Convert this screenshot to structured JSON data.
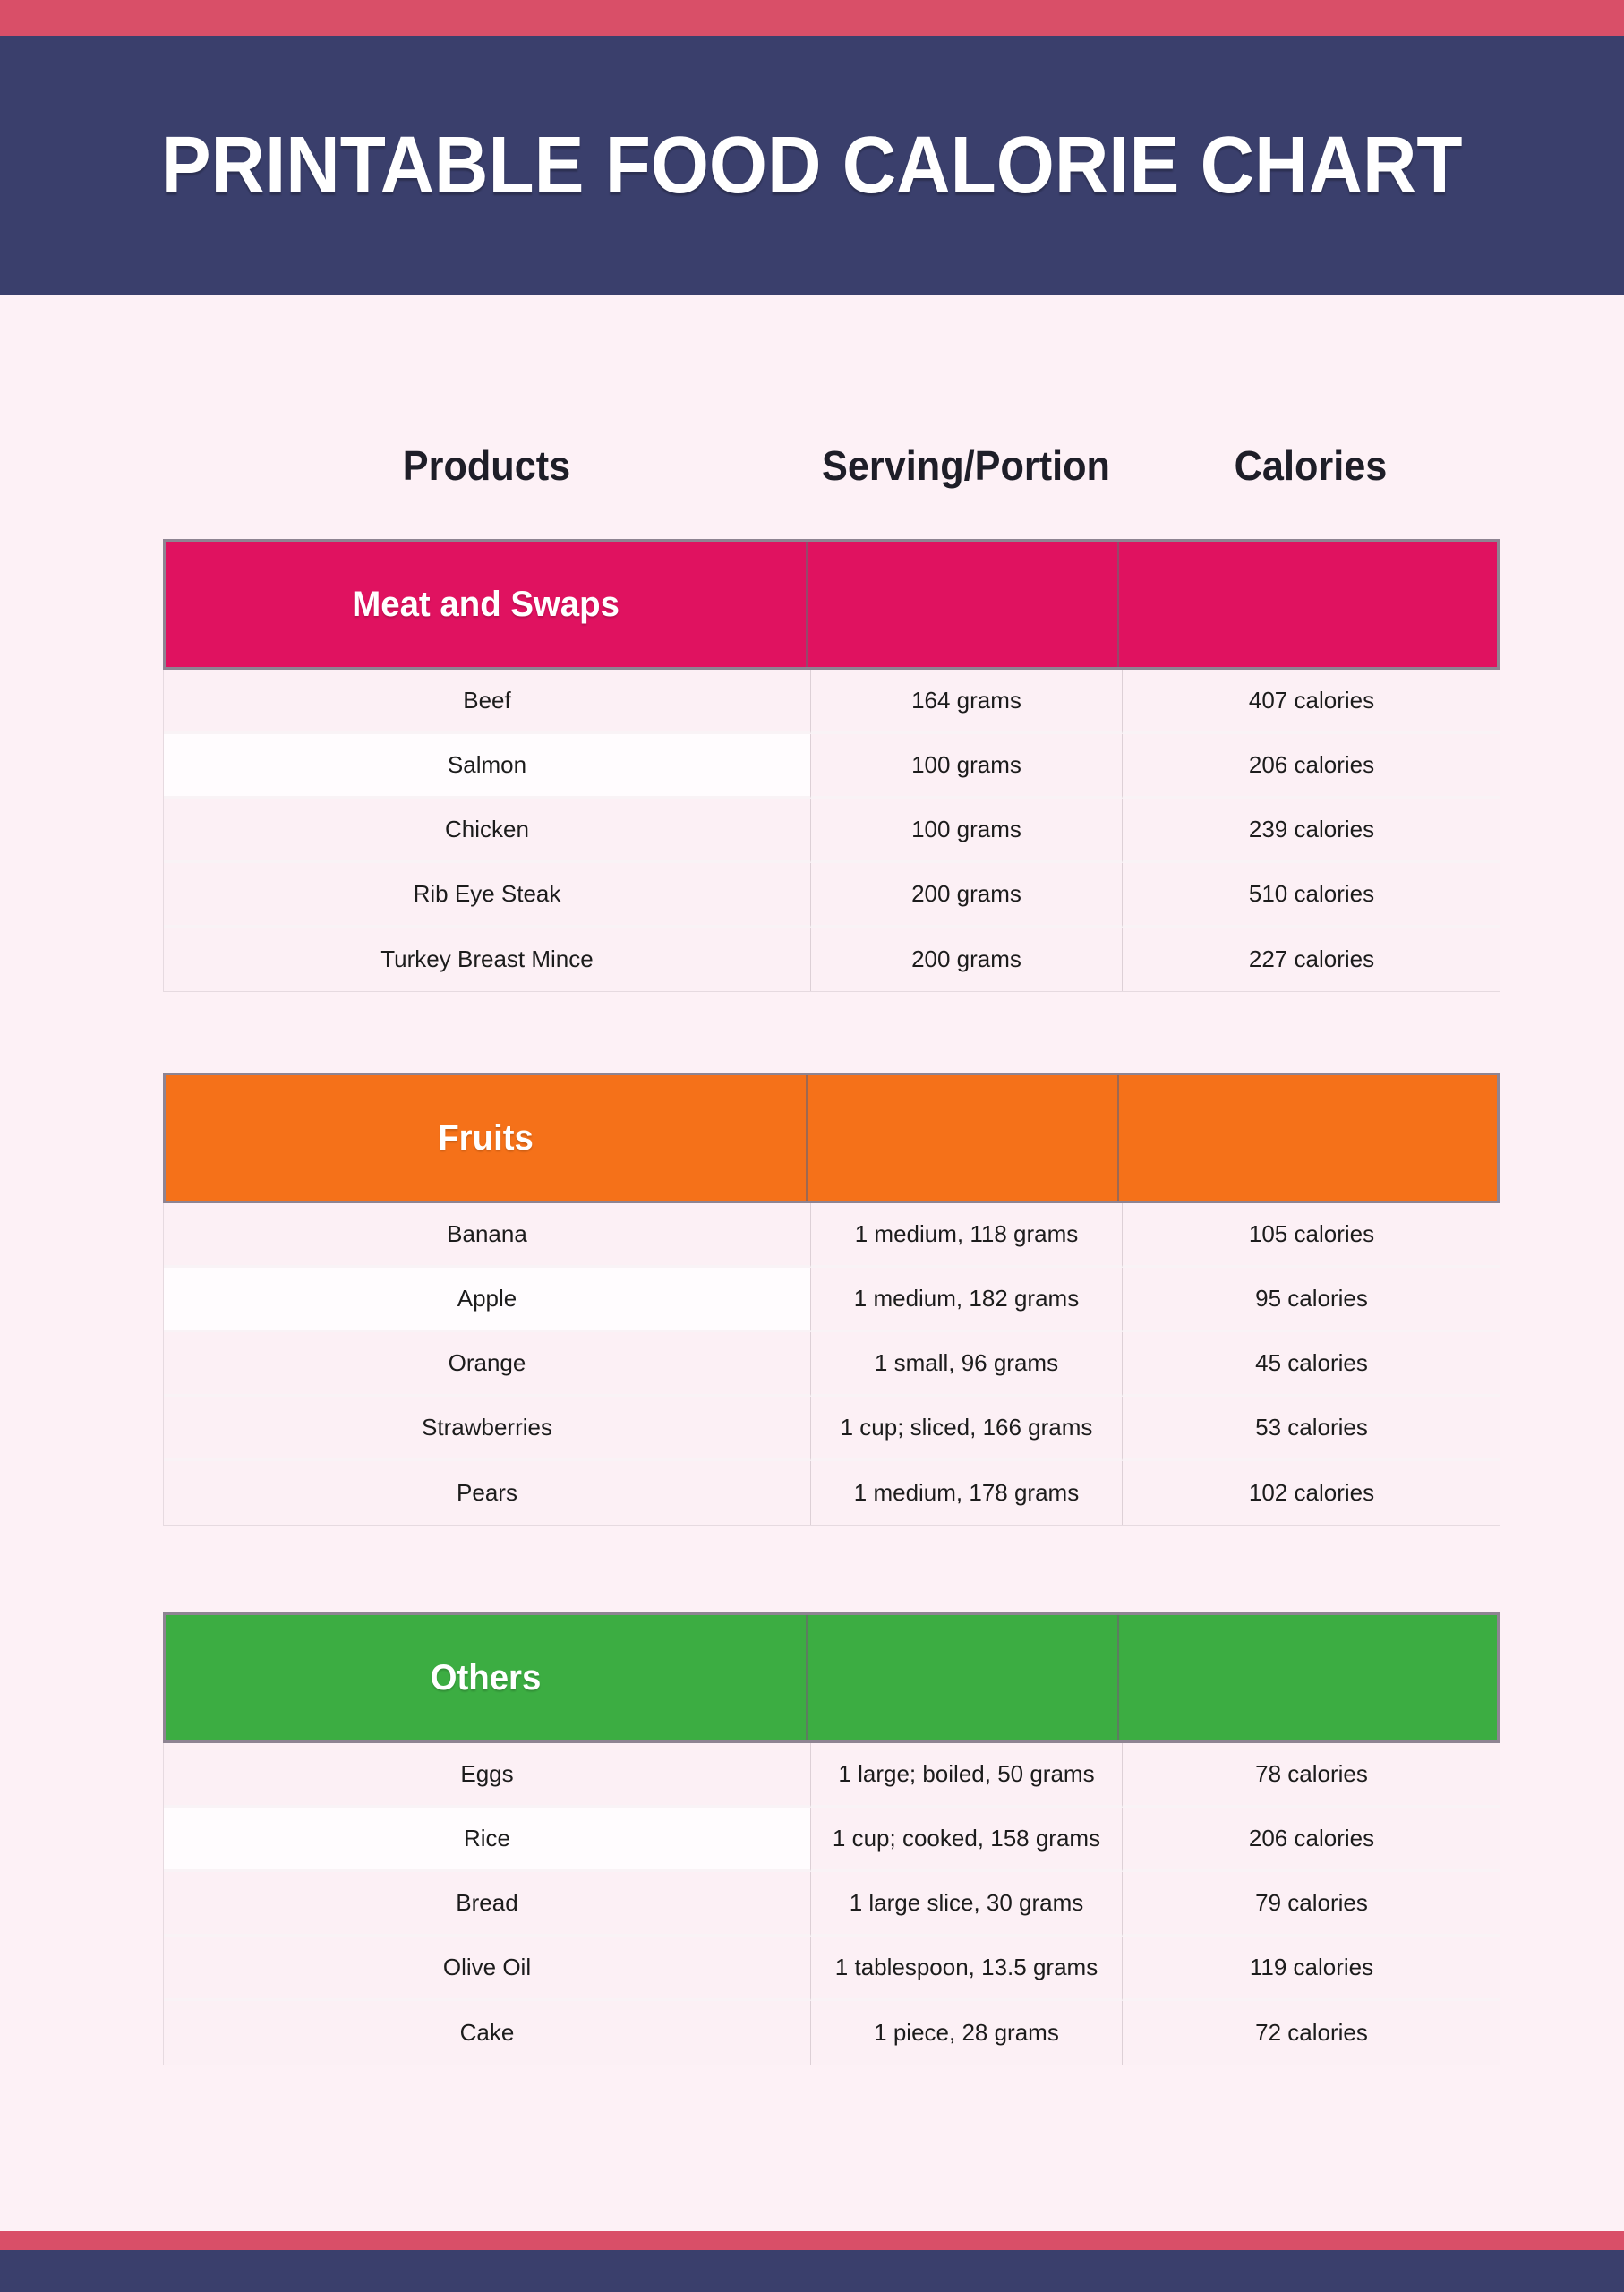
{
  "title": "PRINTABLE FOOD CALORIE CHART",
  "columns": [
    "Products",
    "Serving/Portion",
    "Calories"
  ],
  "colors": {
    "accent_bar": "#d94f68",
    "banner_navy": "#3a3f6c",
    "page_background": "#fdf1f6",
    "meat_header": "#e01260",
    "fruits_header": "#f57119",
    "others_header": "#3cad42"
  },
  "sections": [
    {
      "name": "Meat and Swaps",
      "color": "#e01260",
      "rows": [
        {
          "product": "Beef",
          "serving": "164 grams",
          "calories": "407 calories"
        },
        {
          "product": "Salmon",
          "serving": "100 grams",
          "calories": "206 calories"
        },
        {
          "product": "Chicken",
          "serving": "100 grams",
          "calories": "239 calories"
        },
        {
          "product": "Rib Eye Steak",
          "serving": "200 grams",
          "calories": "510 calories"
        },
        {
          "product": "Turkey Breast Mince",
          "serving": "200 grams",
          "calories": "227 calories"
        }
      ]
    },
    {
      "name": "Fruits",
      "color": "#f57119",
      "rows": [
        {
          "product": "Banana",
          "serving": "1 medium, 118 grams",
          "calories": "105 calories"
        },
        {
          "product": "Apple",
          "serving": "1 medium, 182 grams",
          "calories": "95 calories"
        },
        {
          "product": "Orange",
          "serving": "1 small, 96 grams",
          "calories": "45 calories"
        },
        {
          "product": "Strawberries",
          "serving": "1 cup; sliced, 166 grams",
          "calories": "53 calories"
        },
        {
          "product": "Pears",
          "serving": "1 medium, 178 grams",
          "calories": "102 calories"
        }
      ]
    },
    {
      "name": "Others",
      "color": "#3cad42",
      "rows": [
        {
          "product": "Eggs",
          "serving": "1 large; boiled, 50 grams",
          "calories": "78 calories"
        },
        {
          "product": "Rice",
          "serving": "1 cup; cooked, 158 grams",
          "calories": "206 calories"
        },
        {
          "product": "Bread",
          "serving": "1 large slice, 30 grams",
          "calories": "79 calories"
        },
        {
          "product": "Olive Oil",
          "serving": "1 tablespoon, 13.5 grams",
          "calories": "119 calories"
        },
        {
          "product": "Cake",
          "serving": "1 piece, 28 grams",
          "calories": "72 calories"
        }
      ]
    }
  ]
}
